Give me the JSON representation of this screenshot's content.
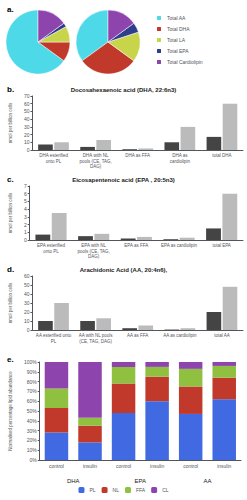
{
  "chart_data": [
    {
      "type": "pie",
      "annotations": [
        {
          "text": "a."
        }
      ],
      "categories": [
        "Total AA",
        "Total DHA",
        "Total LA",
        "Total EPA",
        "Total Cardiolipin"
      ],
      "colors": [
        "#4dd9e8",
        "#c0392b",
        "#c8d44a",
        "#2c3e8c",
        "#8e44ad"
      ],
      "series": [
        {
          "values": [
            65,
            10,
            8,
            2,
            15
          ]
        },
        {
          "values": [
            35,
            30,
            15,
            5,
            15
          ]
        }
      ],
      "legend": "right"
    },
    {
      "type": "bar",
      "annotations": [
        {
          "text": "b."
        }
      ],
      "title": "Docosahexaenoic acid (DHA, 22:6n3)",
      "ylabel": "nmol per billion cells",
      "categories": [
        "DHA esterified\nonto PL",
        "DHA with NL\npools (CE, TAG,\nDAG)",
        "DHA as FFA",
        "DHA as\ncardiolipin",
        "total DHA"
      ],
      "series": [
        {
          "color": "#444444",
          "values": [
            7,
            4,
            1,
            10,
            17
          ]
        },
        {
          "color": "#bbbbbb",
          "values": [
            10,
            13,
            2,
            30,
            60
          ]
        }
      ],
      "ylim": [
        0,
        70
      ],
      "yticks": [
        0,
        10,
        20,
        30,
        40,
        50,
        60,
        70
      ],
      "grid": false
    },
    {
      "type": "bar",
      "annotations": [
        {
          "text": "c."
        }
      ],
      "title": "Eicosapentenoic acid (EPA , 20:5n3)",
      "ylabel": "nmol per billion cells",
      "categories": [
        "EPA esterified\nonto PL",
        "EPA with NL\npools (CE, TAG,\nDAG)",
        "EPA as FFA",
        "EPA as cardiolipin",
        "total EPA"
      ],
      "series": [
        {
          "color": "#444444",
          "values": [
            0.7,
            0.5,
            0.2,
            0.1,
            1.5
          ]
        },
        {
          "color": "#bbbbbb",
          "values": [
            3.5,
            0.8,
            0.4,
            0.3,
            6.0
          ]
        }
      ],
      "ylim": [
        0,
        7
      ],
      "yticks": [
        0,
        1,
        2,
        3,
        4,
        5,
        6,
        7
      ],
      "grid": false
    },
    {
      "type": "bar",
      "annotations": [
        {
          "text": "d."
        }
      ],
      "title": "Arachidonic Acid (AA, 20:4n6),",
      "ylabel": "nmol per billion cells",
      "categories": [
        "AA esterified onto\nPL",
        "AA with NL pools\n(CE, TAG, DAG)",
        "AA as FFA",
        "AA as cardiolipin",
        "total AA"
      ],
      "series": [
        {
          "color": "#444444",
          "values": [
            10,
            10,
            2,
            0.5,
            20
          ]
        },
        {
          "color": "#bbbbbb",
          "values": [
            30,
            13,
            5,
            2,
            48
          ]
        }
      ],
      "ylim": [
        0,
        60
      ],
      "yticks": [
        0,
        10,
        20,
        30,
        40,
        50,
        60
      ],
      "grid": false
    },
    {
      "type": "bar",
      "stacked": true,
      "annotations": [
        {
          "text": "e."
        },
        {
          "text": "DHA"
        },
        {
          "text": "EPA"
        },
        {
          "text": "AA"
        }
      ],
      "ylabel": "Normalised percentage lipid abundance",
      "categories": [
        "control",
        "insulin",
        "control",
        "insulin",
        "control",
        "insulin"
      ],
      "series": [
        {
          "name": "PL",
          "color": "#4169e1",
          "values": [
            28,
            18,
            48,
            60,
            47,
            62
          ]
        },
        {
          "name": "NL",
          "color": "#c0392b",
          "values": [
            25,
            17,
            30,
            25,
            28,
            22
          ]
        },
        {
          "name": "FFA",
          "color": "#90c040",
          "values": [
            20,
            8,
            17,
            10,
            18,
            12
          ]
        },
        {
          "name": "CL",
          "color": "#8e44ad",
          "values": [
            27,
            57,
            5,
            5,
            7,
            4
          ]
        }
      ],
      "ylim": [
        0,
        100
      ],
      "yticks": [
        {
          "value": 0,
          "label": "0%"
        },
        {
          "value": 10,
          "label": "10%"
        },
        {
          "value": 20,
          "label": "20%"
        },
        {
          "value": 30,
          "label": "30%"
        },
        {
          "value": 40,
          "label": "40%"
        },
        {
          "value": 50,
          "label": "50%"
        },
        {
          "value": 60,
          "label": "60%"
        },
        {
          "value": 70,
          "label": "70%"
        },
        {
          "value": 80,
          "label": "80%"
        },
        {
          "value": 90,
          "label": "90%"
        },
        {
          "value": 100,
          "label": "100%"
        }
      ],
      "grid": false,
      "legend": "bottom"
    }
  ]
}
